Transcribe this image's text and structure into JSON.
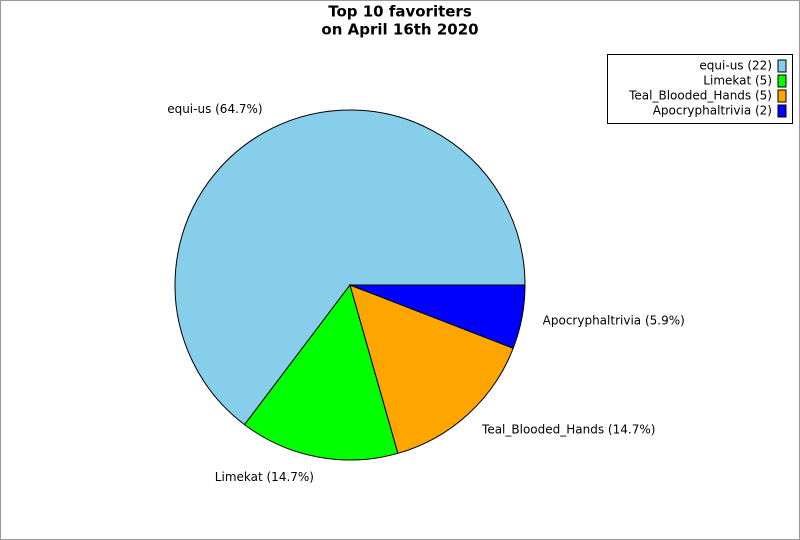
{
  "chart_data": {
    "type": "pie",
    "title": [
      "Top 10 favoriters",
      "on April 16th 2020"
    ],
    "categories": [
      "equi-us",
      "Limekat",
      "Teal_Blooded_Hands",
      "Apocryphaltrivia"
    ],
    "values": [
      22,
      5,
      5,
      2
    ],
    "slice_labels": [
      "equi-us (64.7%)",
      "Limekat (14.7%)",
      "Teal_Blooded_Hands (14.7%)",
      "Apocryphaltrivia (5.9%)"
    ],
    "legend_labels": [
      "equi-us (22)",
      "Limekat (5)",
      "Teal_Blooded_Hands (5)",
      "Apocryphaltrivia (2)"
    ],
    "colors": [
      "#87ceeb",
      "#00ff00",
      "#ffa500",
      "#0000ff"
    ],
    "legend": "upper right"
  }
}
